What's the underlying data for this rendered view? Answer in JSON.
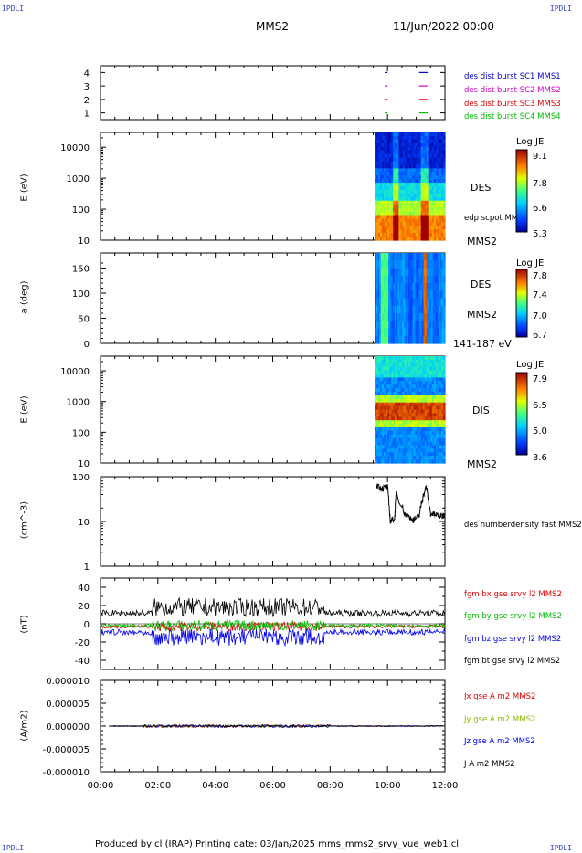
{
  "header": {
    "corner_left_top": "IPDLI",
    "corner_right_top": "IPDLI",
    "corner_left_bottom": "IPDLI",
    "corner_right_bottom": "IPDLI",
    "title": "MMS2",
    "date": "11/Jun/2022 00:00"
  },
  "footer": {
    "text": "Produced by cl (IRAP)   Printing date: 03/Jan/2025   mms_mms2_srvy_vue_web1.cl"
  },
  "colors": {
    "mms1": "#0000cc",
    "mms2": "#cc00cc",
    "mms3": "#dd0000",
    "mms4": "#00bb00",
    "bx": "#dd0000",
    "by": "#00bb00",
    "bz": "#0000ee",
    "bt": "#000000"
  },
  "chart_data": [
    {
      "type": "scatter",
      "panel": "burst-availability",
      "ylim": [
        0.5,
        4.5
      ],
      "yticks": [
        "1",
        "2",
        "3",
        "4"
      ],
      "series": [
        {
          "name": "des dist burst SC1 MMS1",
          "level": 1,
          "color": "#0000cc",
          "segments": [
            [
              9.9,
              10.0
            ],
            [
              11.1,
              11.4
            ]
          ]
        },
        {
          "name": "des dist burst SC2 MMS2",
          "level": 2,
          "color": "#cc00cc",
          "segments": [
            [
              9.9,
              10.0
            ],
            [
              11.1,
              11.4
            ]
          ]
        },
        {
          "name": "des dist burst SC3 MMS3",
          "level": 3,
          "color": "#dd0000",
          "segments": [
            [
              9.9,
              10.0
            ],
            [
              11.1,
              11.4
            ]
          ]
        },
        {
          "name": "des dist burst SC4 MMS4",
          "level": 4,
          "color": "#00bb00",
          "segments": [
            [
              9.9,
              10.0
            ],
            [
              11.1,
              11.4
            ]
          ]
        }
      ]
    },
    {
      "type": "heatmap",
      "panel": "des-energy-spectrogram",
      "ylabel": "E (eV)",
      "yscale": "log",
      "ylim": [
        10,
        30000
      ],
      "yticks": [
        "10",
        "100",
        "1000",
        "10000"
      ],
      "label": "DES",
      "sublabel": "MMS2",
      "overlay_label": "edp scpot MMS2",
      "colorbar": {
        "title": "Log JE",
        "ticks": [
          "9.1",
          "7.8",
          "6.6",
          "5.3"
        ]
      },
      "data_start_hour": 9.55
    },
    {
      "type": "heatmap",
      "panel": "des-pitch-angle",
      "ylabel": "a (deg)",
      "ylim": [
        0,
        180
      ],
      "yticks": [
        "0",
        "50",
        "100",
        "150"
      ],
      "label": "DES",
      "sublabel": "MMS2",
      "energy_range": "141-187 eV",
      "colorbar": {
        "title": "Log JE",
        "ticks": [
          "7.8",
          "7.4",
          "7.0",
          "6.7"
        ]
      },
      "data_start_hour": 9.55
    },
    {
      "type": "heatmap",
      "panel": "dis-energy-spectrogram",
      "ylabel": "E (eV)",
      "yscale": "log",
      "ylim": [
        10,
        30000
      ],
      "yticks": [
        "10",
        "100",
        "1000",
        "10000"
      ],
      "label": "DIS",
      "sublabel": "MMS2",
      "colorbar": {
        "title": "Log JE",
        "ticks": [
          "7.9",
          "6.5",
          "5.0",
          "3.6"
        ]
      },
      "data_start_hour": 9.55
    },
    {
      "type": "line",
      "panel": "density",
      "ylabel": "(cm^-3)",
      "yscale": "log",
      "ylim": [
        1,
        100
      ],
      "yticks": [
        "1",
        "10",
        "100"
      ],
      "series": [
        {
          "name": "des numberdensity fast MMS2",
          "color": "#000000",
          "x": [
            9.6,
            9.8,
            10.0,
            10.1,
            10.25,
            10.3,
            10.6,
            10.9,
            11.1,
            11.2,
            11.35,
            11.5,
            11.7,
            11.9,
            12.0
          ],
          "y": [
            70,
            55,
            60,
            10,
            12,
            45,
            15,
            11,
            13,
            30,
            60,
            15,
            14,
            13,
            15
          ]
        }
      ]
    },
    {
      "type": "line",
      "panel": "magnetic-field",
      "ylabel": "(nT)",
      "ylim": [
        -50,
        50
      ],
      "yticks": [
        "-40",
        "-20",
        "0",
        "20",
        "40"
      ],
      "series": [
        {
          "name": "fgm bx gse srvy l2 MMS2",
          "color": "#dd0000"
        },
        {
          "name": "fgm by gse srvy l2 MMS2",
          "color": "#00bb00"
        },
        {
          "name": "fgm bz gse srvy l2 MMS2",
          "color": "#0000ee"
        },
        {
          "name": "fgm bt gse srvy l2 MMS2",
          "color": "#000000"
        }
      ]
    },
    {
      "type": "line",
      "panel": "current-density",
      "ylabel": "(A/m2)",
      "ylim": [
        -1e-05,
        1e-05
      ],
      "yticks": [
        "-0.000010",
        "-0.000005",
        "0.000000",
        "0.000005",
        "0.000010"
      ],
      "xticks": [
        "00:00",
        "02:00",
        "04:00",
        "06:00",
        "08:00",
        "10:00",
        "12:00"
      ],
      "series": [
        {
          "name": "Jx gse A m2 MMS2",
          "color": "#dd0000"
        },
        {
          "name": "Jy gse A m2 MMS2",
          "color": "#88bb00"
        },
        {
          "name": "Jz gse A m2 MMS2",
          "color": "#0000ee"
        },
        {
          "name": "J A m2 MMS2",
          "color": "#000000"
        }
      ]
    }
  ]
}
